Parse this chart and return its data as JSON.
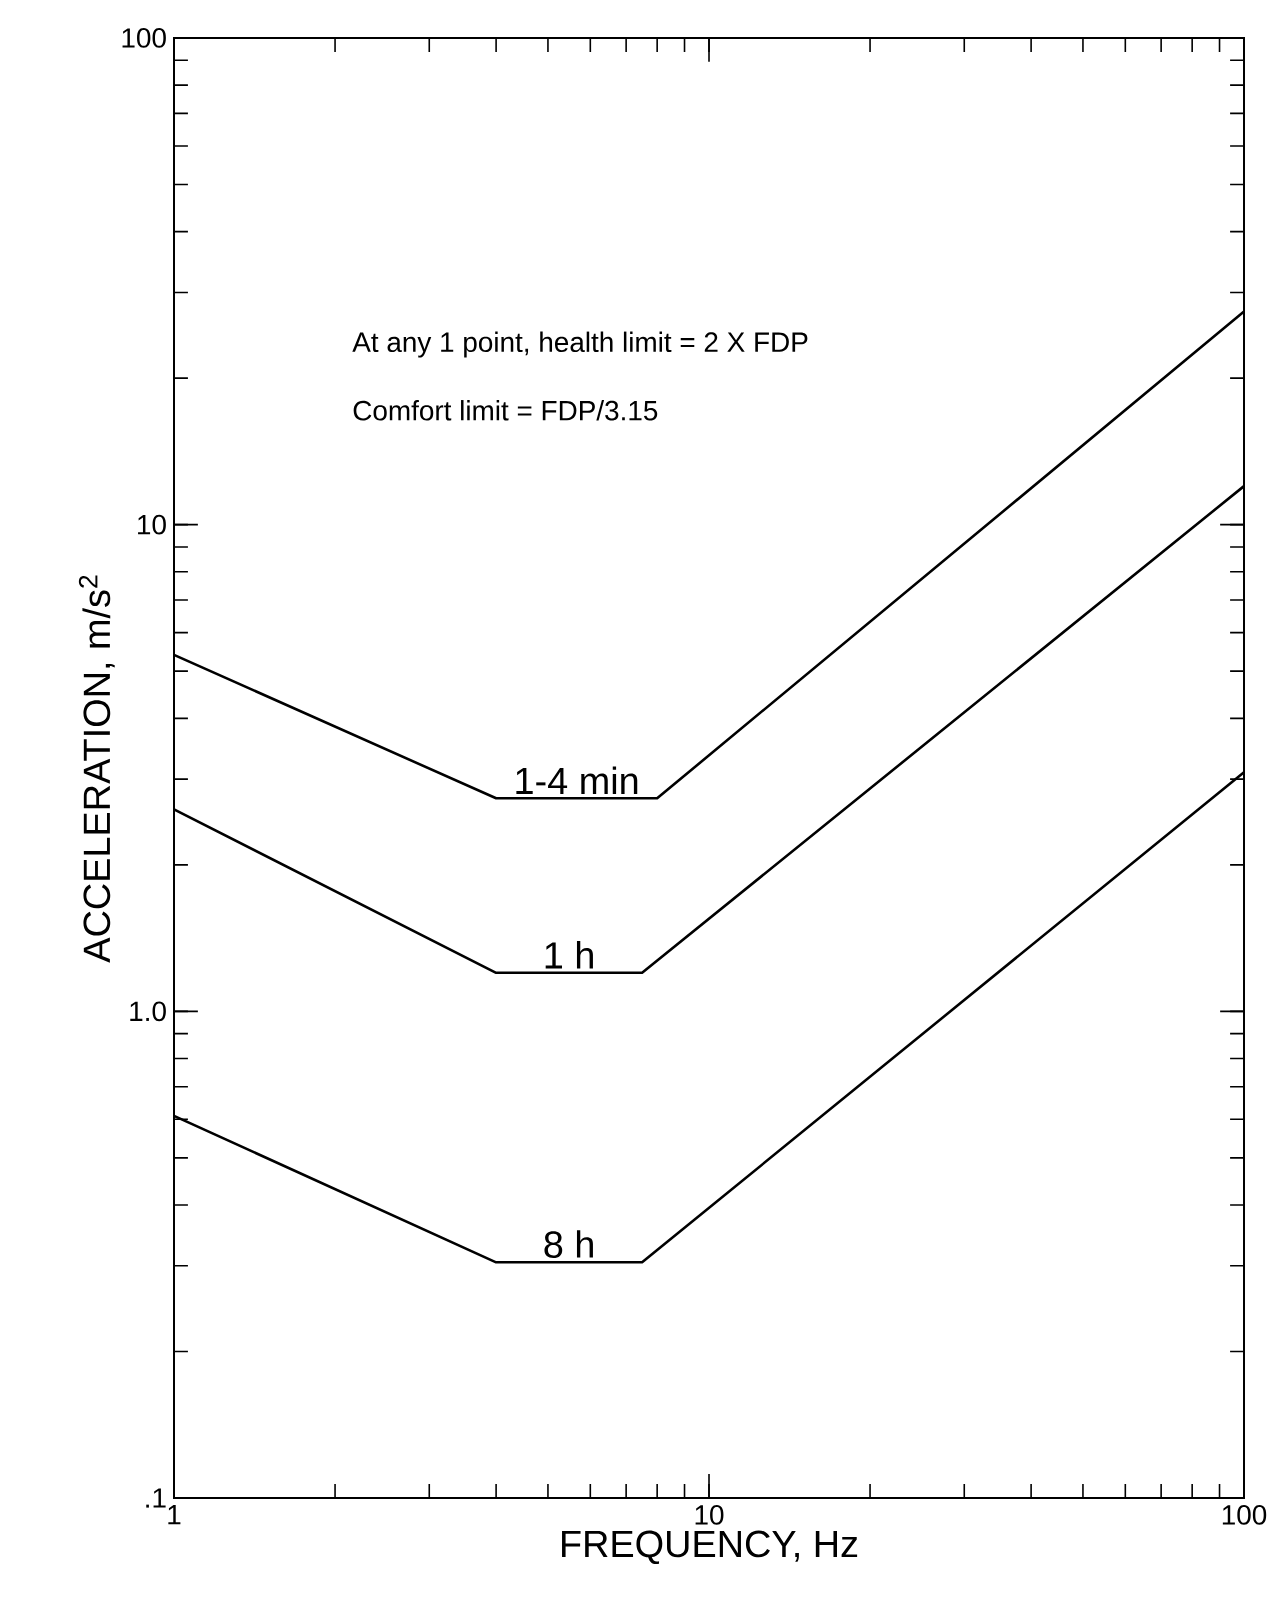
{
  "chart_data": {
    "type": "line",
    "xlabel": "FREQUENCY, Hz",
    "ylabel": "ACCELERATION, m/s$^{2}$",
    "log": "xy",
    "xlim": [
      1,
      100
    ],
    "xticks": [
      1,
      10,
      100
    ],
    "ylim": [
      0.1,
      100
    ],
    "yticks": [
      {
        "value": 0.1,
        "label": ".1"
      },
      {
        "value": 1,
        "label": "1.0"
      },
      10,
      100
    ],
    "annotations": [
      "At any 1 point, health limit = 2 X FDP",
      "Comfort limit = FDP/3.15"
    ],
    "series": [
      {
        "name": "1-4 min",
        "color": "#000000",
        "x": [
          1,
          4,
          8,
          100
        ],
        "values": [
          5.4,
          2.74,
          2.74,
          27.4
        ]
      },
      {
        "name": "1 h",
        "color": "#000000",
        "x": [
          1,
          4,
          7.5,
          100
        ],
        "values": [
          2.6,
          1.2,
          1.2,
          12
        ]
      },
      {
        "name": "8 h",
        "color": "#000000",
        "x": [
          1,
          4,
          7.5,
          100
        ],
        "values": [
          0.61,
          0.305,
          0.305,
          3.1
        ]
      }
    ]
  }
}
